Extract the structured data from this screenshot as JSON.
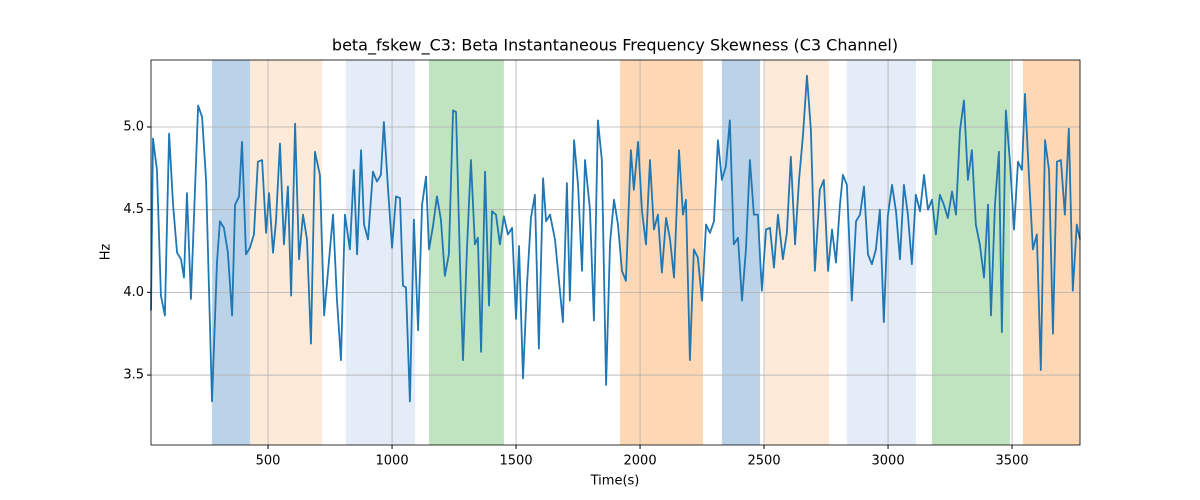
{
  "chart_data": {
    "type": "line",
    "title": "beta_fskew_C3: Beta Instantaneous Frequency Skewness (C3 Channel)",
    "xlabel": "Time(s)",
    "ylabel": "Hz",
    "xlim": [
      28,
      3774
    ],
    "ylim": [
      3.077,
      5.405
    ],
    "xticks": [
      500,
      1000,
      1500,
      2000,
      2500,
      3000,
      3500
    ],
    "yticks": [
      3.5,
      {
        "value": 4,
        "label": "4.0"
      },
      4.5,
      {
        "value": 5,
        "label": "5.0"
      }
    ],
    "grid": true,
    "spans": [
      {
        "start": 274,
        "end": 427,
        "color": "#bad3e8"
      },
      {
        "start": 427,
        "end": 718,
        "color": "#feead8"
      },
      {
        "start": 814,
        "end": 1093,
        "color": "#e4ecf7"
      },
      {
        "start": 1149,
        "end": 1451,
        "color": "#c0e4bf"
      },
      {
        "start": 1919,
        "end": 2254,
        "color": "#fed8b4"
      },
      {
        "start": 2330,
        "end": 2484,
        "color": "#bad3e8"
      },
      {
        "start": 2504,
        "end": 2762,
        "color": "#feead8"
      },
      {
        "start": 2834,
        "end": 3113,
        "color": "#e4ecf7"
      },
      {
        "start": 3177,
        "end": 3492,
        "color": "#c0e4bf"
      },
      {
        "start": 3544,
        "end": 3774,
        "color": "#fed8b4"
      }
    ],
    "x": [
      28,
      36,
      52,
      68,
      84,
      101,
      117,
      133,
      149,
      161,
      173,
      189,
      218,
      234,
      250,
      274,
      294,
      306,
      322,
      338,
      355,
      367,
      383,
      395,
      411,
      427,
      443,
      459,
      476,
      492,
      504,
      520,
      532,
      548,
      564,
      580,
      593,
      609,
      625,
      641,
      657,
      673,
      689,
      709,
      726,
      742,
      762,
      778,
      794,
      810,
      830,
      846,
      859,
      875,
      887,
      903,
      923,
      939,
      955,
      967,
      984,
      1000,
      1016,
      1032,
      1044,
      1056,
      1072,
      1088,
      1105,
      1121,
      1137,
      1149,
      1165,
      1181,
      1197,
      1213,
      1229,
      1246,
      1258,
      1274,
      1286,
      1302,
      1318,
      1334,
      1346,
      1359,
      1375,
      1391,
      1403,
      1419,
      1435,
      1451,
      1467,
      1484,
      1500,
      1512,
      1528,
      1544,
      1560,
      1576,
      1592,
      1609,
      1621,
      1637,
      1657,
      1673,
      1689,
      1705,
      1717,
      1734,
      1750,
      1766,
      1778,
      1798,
      1814,
      1830,
      1846,
      1863,
      1879,
      1895,
      1911,
      1927,
      1943,
      1963,
      1975,
      1992,
      2008,
      2024,
      2040,
      2056,
      2072,
      2088,
      2105,
      2121,
      2137,
      2157,
      2173,
      2185,
      2201,
      2217,
      2233,
      2250,
      2266,
      2282,
      2298,
      2314,
      2330,
      2346,
      2362,
      2378,
      2395,
      2411,
      2427,
      2443,
      2459,
      2475,
      2491,
      2508,
      2524,
      2540,
      2556,
      2576,
      2592,
      2608,
      2625,
      2641,
      2657,
      2673,
      2689,
      2705,
      2725,
      2741,
      2758,
      2774,
      2790,
      2806,
      2818,
      2834,
      2854,
      2871,
      2887,
      2903,
      2919,
      2935,
      2951,
      2967,
      2983,
      2999,
      3016,
      3032,
      3048,
      3064,
      3080,
      3096,
      3112,
      3129,
      3145,
      3161,
      3177,
      3193,
      3209,
      3225,
      3241,
      3258,
      3274,
      3290,
      3306,
      3322,
      3338,
      3354,
      3370,
      3387,
      3403,
      3415,
      3431,
      3447,
      3459,
      3475,
      3491,
      3508,
      3524,
      3540,
      3552,
      3568,
      3584,
      3600,
      3616,
      3633,
      3649,
      3665,
      3681,
      3697,
      3713,
      3729,
      3745,
      3761,
      3774
    ],
    "series": [
      {
        "name": "beta_fskew_C3",
        "color": "#1f77b4",
        "values": [
          3.89,
          4.93,
          4.74,
          3.98,
          3.86,
          4.96,
          4.53,
          4.24,
          4.2,
          4.09,
          4.6,
          3.96,
          5.13,
          5.06,
          4.68,
          3.34,
          4.18,
          4.43,
          4.39,
          4.24,
          3.86,
          4.53,
          4.58,
          4.91,
          4.23,
          4.27,
          4.35,
          4.79,
          4.8,
          4.36,
          4.6,
          4.24,
          4.43,
          4.9,
          4.29,
          4.64,
          3.98,
          5.02,
          4.2,
          4.47,
          4.32,
          3.69,
          4.85,
          4.71,
          3.86,
          4.13,
          4.47,
          3.95,
          3.59,
          4.47,
          4.26,
          4.74,
          4.23,
          4.86,
          4.41,
          4.32,
          4.73,
          4.67,
          4.71,
          5.03,
          4.62,
          4.27,
          4.58,
          4.57,
          4.04,
          4.03,
          3.34,
          4.44,
          3.77,
          4.53,
          4.7,
          4.26,
          4.4,
          4.58,
          4.44,
          4.1,
          4.23,
          5.1,
          5.09,
          4.17,
          3.59,
          4.26,
          4.8,
          4.29,
          4.33,
          3.64,
          4.73,
          3.92,
          4.49,
          4.47,
          4.29,
          4.46,
          4.35,
          4.39,
          3.84,
          4.28,
          3.48,
          4.04,
          4.45,
          4.59,
          3.66,
          4.69,
          4.43,
          4.47,
          4.32,
          4.07,
          3.82,
          4.66,
          3.95,
          4.92,
          4.65,
          4.13,
          4.8,
          4.5,
          3.83,
          5.04,
          4.8,
          3.44,
          4.3,
          4.56,
          4.41,
          4.13,
          4.07,
          4.86,
          4.62,
          4.91,
          4.49,
          4.29,
          4.8,
          4.38,
          4.47,
          4.12,
          4.45,
          4.32,
          4.09,
          4.86,
          4.47,
          4.56,
          3.59,
          4.26,
          4.21,
          3.95,
          4.41,
          4.36,
          4.43,
          4.92,
          4.68,
          4.76,
          5.04,
          4.29,
          4.33,
          3.95,
          4.26,
          4.8,
          4.47,
          4.47,
          4.01,
          4.38,
          4.39,
          4.15,
          4.47,
          4.2,
          4.36,
          4.82,
          4.29,
          4.68,
          4.95,
          5.31,
          4.98,
          4.13,
          4.62,
          4.68,
          4.13,
          4.38,
          4.18,
          4.53,
          4.71,
          4.65,
          3.95,
          4.43,
          4.47,
          4.64,
          4.23,
          4.17,
          4.26,
          4.5,
          3.82,
          4.46,
          4.65,
          4.49,
          4.2,
          4.65,
          4.47,
          4.17,
          4.59,
          4.49,
          4.71,
          4.5,
          4.56,
          4.35,
          4.59,
          4.53,
          4.45,
          4.61,
          4.47,
          4.98,
          5.16,
          4.68,
          4.86,
          4.41,
          4.29,
          4.09,
          4.53,
          3.86,
          4.53,
          4.85,
          3.76,
          5.1,
          4.8,
          4.38,
          4.79,
          4.74,
          5.2,
          4.71,
          4.26,
          4.35,
          3.53,
          4.92,
          4.74,
          3.75,
          4.79,
          4.8,
          4.47,
          4.99,
          4.01,
          4.41,
          4.32
        ]
      }
    ]
  }
}
